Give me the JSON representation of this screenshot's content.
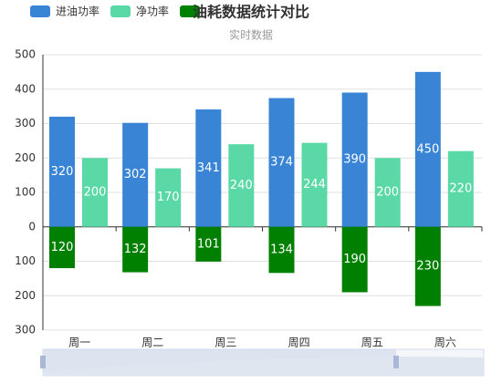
{
  "chart_data": {
    "type": "bar",
    "title": "油耗数据统计对比",
    "subtitle": "实时数据",
    "categories": [
      "周一",
      "周二",
      "周三",
      "周四",
      "周五",
      "周六"
    ],
    "series": [
      {
        "name": "进油功率",
        "color": "#3a84d6",
        "values": [
          320,
          302,
          341,
          374,
          390,
          450
        ]
      },
      {
        "name": "净功率",
        "color": "#5ad8a6",
        "values": [
          200,
          170,
          240,
          244,
          200,
          220
        ]
      },
      {
        "color": "#008000",
        "values": [
          -120,
          -132,
          -101,
          -134,
          -190,
          -230
        ],
        "value_labels": [
          "120",
          "132",
          "101",
          "134",
          "190",
          "230"
        ]
      }
    ],
    "ylim": [
      -300,
      500
    ],
    "yticks": [
      {
        "value": -300,
        "label": "300"
      },
      {
        "value": -200,
        "label": "200"
      },
      {
        "value": -100,
        "label": "100"
      },
      0,
      100,
      200,
      300,
      400,
      500
    ],
    "grid": true
  }
}
